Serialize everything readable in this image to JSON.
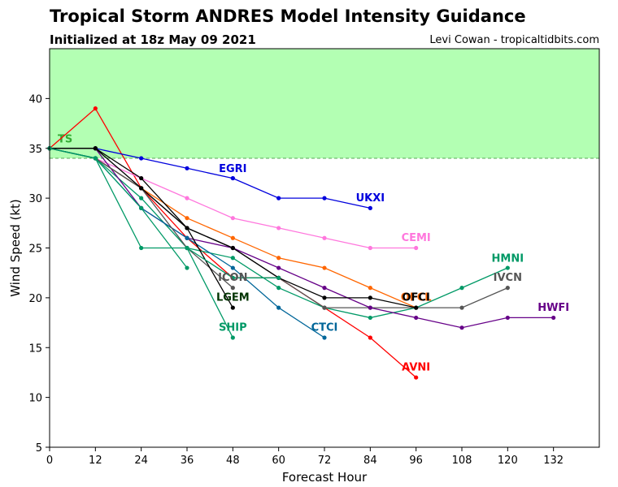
{
  "header": {
    "title": "Tropical Storm ANDRES Model Intensity Guidance",
    "subtitle": "Initialized at 18z May 09 2021",
    "credit": "Levi Cowan - tropicaltidbits.com"
  },
  "chart_data": {
    "type": "line",
    "xlabel": "Forecast Hour",
    "ylabel": "Wind Speed (kt)",
    "xlim": [
      0,
      144
    ],
    "ylim": [
      5,
      45
    ],
    "xticks": [
      0,
      12,
      24,
      36,
      48,
      60,
      72,
      84,
      96,
      108,
      120,
      132
    ],
    "yticks": [
      5,
      10,
      15,
      20,
      25,
      30,
      35,
      40
    ],
    "grid": false,
    "threshold": {
      "label": "TS",
      "value": 34,
      "color": "#b3ffb3",
      "label_color": "#33aa33"
    },
    "series": [
      {
        "name": "AVNI",
        "color": "#ff0000",
        "x": [
          0,
          12,
          24,
          36,
          48,
          60,
          72,
          84,
          96
        ],
        "y": [
          35,
          39,
          31,
          26,
          22,
          22,
          19,
          16,
          12
        ]
      },
      {
        "name": "EGRI",
        "color": "#0000dd",
        "x": [
          0,
          12,
          24,
          36,
          48
        ],
        "y": [
          35,
          35,
          34,
          33,
          32
        ]
      },
      {
        "name": "UKXI",
        "color": "#0000dd",
        "x": [
          48,
          60,
          72,
          84
        ],
        "y": [
          32,
          30,
          30,
          29
        ]
      },
      {
        "name": "CEMI",
        "color": "#ff77dd",
        "x": [
          0,
          12,
          24,
          36,
          48,
          60,
          72,
          84,
          96
        ],
        "y": [
          35,
          34,
          32,
          30,
          28,
          27,
          26,
          25,
          25
        ]
      },
      {
        "name": "OFCL",
        "color": "#ff6600",
        "x": [
          0,
          12,
          24,
          36,
          48,
          60,
          72,
          84,
          96
        ],
        "y": [
          35,
          34,
          31,
          28,
          26,
          24,
          23,
          21,
          19
        ]
      },
      {
        "name": "HMNI",
        "color": "#009966",
        "x": [
          0,
          12,
          24,
          36,
          48,
          60,
          72,
          84,
          96,
          108,
          120
        ],
        "y": [
          35,
          34,
          30,
          25,
          24,
          21,
          19,
          18,
          19,
          21,
          23
        ]
      },
      {
        "name": "IVCN",
        "color": "#555555",
        "x": [
          0,
          12,
          24,
          36,
          48,
          60,
          72,
          84,
          96,
          108,
          120
        ],
        "y": [
          35,
          34,
          31,
          27,
          25,
          22,
          19,
          19,
          19,
          19,
          21
        ]
      },
      {
        "name": "HWFI",
        "color": "#660088",
        "x": [
          0,
          12,
          24,
          36,
          48,
          60,
          72,
          84,
          96,
          108,
          120,
          132
        ],
        "y": [
          35,
          35,
          29,
          26,
          25,
          23,
          21,
          19,
          18,
          17,
          18,
          18
        ]
      },
      {
        "name": "OFCI",
        "color": "#000000",
        "x": [
          0,
          12,
          24,
          36,
          48,
          60,
          72,
          84,
          96
        ],
        "y": [
          35,
          35,
          32,
          27,
          25,
          22,
          20,
          20,
          19
        ]
      },
      {
        "name": "CTCI",
        "color": "#006699",
        "x": [
          0,
          12,
          24,
          36,
          48,
          60,
          72
        ],
        "y": [
          35,
          34,
          29,
          26,
          23,
          19,
          16
        ]
      },
      {
        "name": "ICON",
        "color": "#555555",
        "x": [
          0,
          12,
          24,
          36,
          48
        ],
        "y": [
          35,
          34,
          31,
          25,
          21
        ]
      },
      {
        "name": "LGEM",
        "color": "#000000",
        "x": [
          0,
          12,
          24,
          36,
          48
        ],
        "y": [
          35,
          35,
          31,
          27,
          19
        ]
      },
      {
        "name": "SHIP",
        "color": "#009966",
        "x": [
          0,
          12,
          24,
          36,
          48
        ],
        "y": [
          35,
          34,
          25,
          25,
          16
        ]
      },
      {
        "name": "",
        "color": "#009966",
        "x": [
          0,
          12,
          24,
          36
        ],
        "y": [
          35,
          34,
          29,
          23
        ]
      },
      {
        "name": "",
        "color": "#009966",
        "x": [
          36,
          48,
          60
        ],
        "y": [
          25,
          22,
          22
        ]
      }
    ],
    "labels": [
      {
        "text": "EGRI",
        "x": 48,
        "y": 32.6,
        "color": "#0000dd"
      },
      {
        "text": "UKXI",
        "x": 84,
        "y": 29.7,
        "color": "#0000dd"
      },
      {
        "text": "CEMI",
        "x": 96,
        "y": 25.7,
        "color": "#ff77dd"
      },
      {
        "text": "HMNI",
        "x": 120,
        "y": 23.6,
        "color": "#009966"
      },
      {
        "text": "IVCN",
        "x": 120,
        "y": 21.7,
        "color": "#555555"
      },
      {
        "text": "OFCL",
        "x": 96,
        "y": 19.7,
        "color": "#ff6600"
      },
      {
        "text": "OFCI",
        "x": 96,
        "y": 19.7,
        "color": "#000000"
      },
      {
        "text": "HWFI",
        "x": 132,
        "y": 18.7,
        "color": "#660088"
      },
      {
        "text": "ICON",
        "x": 48,
        "y": 21.7,
        "color": "#555555"
      },
      {
        "text": "LGEM",
        "x": 48,
        "y": 19.7,
        "color": "#003300"
      },
      {
        "text": "SHIP",
        "x": 48,
        "y": 16.7,
        "color": "#009966"
      },
      {
        "text": "CTCI",
        "x": 72,
        "y": 16.7,
        "color": "#006699"
      },
      {
        "text": "AVNI",
        "x": 96,
        "y": 12.7,
        "color": "#ff0000"
      }
    ]
  }
}
